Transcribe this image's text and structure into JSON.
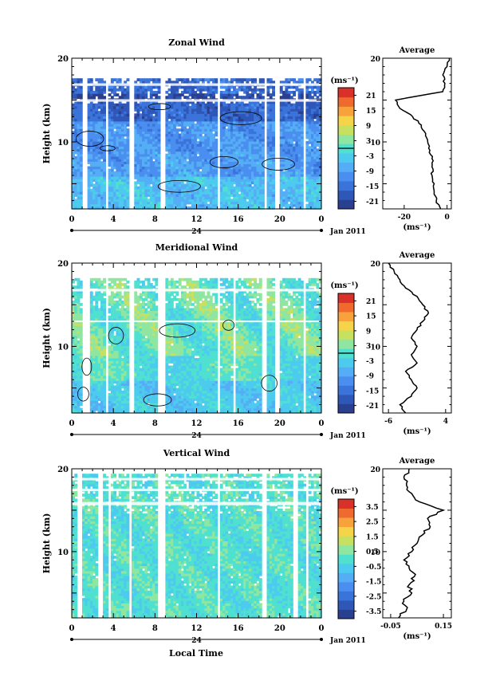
{
  "xaxis": {
    "ticks": [
      "0",
      "4",
      "8",
      "12",
      "16",
      "20",
      "0"
    ],
    "day": "24",
    "month": "Jan 2011",
    "label": "Local Time"
  },
  "colorbar_colors": [
    "#2b3f8f",
    "#2f57b8",
    "#3a73d9",
    "#4a8ff0",
    "#55aef5",
    "#4dcbee",
    "#4fe0d0",
    "#8fe6a0",
    "#c8e060",
    "#f5d44a",
    "#f8a23c",
    "#f06a30",
    "#d9302a"
  ],
  "chart_data": [
    {
      "type": "heatmap",
      "title": "Zonal Wind",
      "ylabel": "Height (km)",
      "unit": "(ms⁻¹)",
      "ylim": [
        2,
        20
      ],
      "xlim": [
        0,
        24
      ],
      "yticks": [
        "10",
        "20"
      ],
      "colorbar_ticks": [
        "21",
        "15",
        "9",
        "3",
        "-3",
        "-9",
        "-15",
        "-21"
      ],
      "colorbar_values": [
        21,
        15,
        9,
        3,
        -3,
        -9,
        -15,
        -21
      ],
      "colorbar_range": [
        -24,
        24
      ],
      "profile": {
        "title": "Average",
        "xlabel": "(ms⁻¹)",
        "xticks": [
          "-20",
          "0"
        ],
        "xtick_values": [
          -20,
          0
        ],
        "xlim": [
          -30,
          2
        ],
        "yticks": [
          "10",
          "20"
        ],
        "heights": [
          2,
          3,
          4,
          5,
          6,
          7,
          8,
          9,
          10,
          11,
          12,
          13,
          14,
          15,
          16,
          17,
          18,
          19,
          20
        ],
        "values": [
          -3,
          -5,
          -6,
          -6,
          -7,
          -7,
          -7,
          -8,
          -9,
          -10,
          -12,
          -16,
          -22,
          -24,
          -2,
          -1,
          -2,
          0,
          1
        ]
      }
    },
    {
      "type": "heatmap",
      "title": "Meridional Wind",
      "ylabel": "Height (km)",
      "unit": "(ms⁻¹)",
      "ylim": [
        2,
        20
      ],
      "xlim": [
        0,
        24
      ],
      "yticks": [
        "10",
        "20"
      ],
      "colorbar_ticks": [
        "21",
        "15",
        "9",
        "3",
        "-3",
        "-9",
        "-15",
        "-21"
      ],
      "colorbar_values": [
        21,
        15,
        9,
        3,
        -3,
        -9,
        -15,
        -21
      ],
      "colorbar_range": [
        -24,
        24
      ],
      "profile": {
        "title": "Average",
        "xlabel": "(ms⁻¹)",
        "xticks": [
          "-6",
          "4"
        ],
        "xtick_values": [
          -6,
          4
        ],
        "xlim": [
          -7,
          5
        ],
        "yticks": [
          "10",
          "20"
        ],
        "heights": [
          2,
          3,
          4,
          5,
          6,
          7,
          8,
          9,
          10,
          11,
          12,
          13,
          14,
          15,
          16,
          17,
          18,
          19,
          20
        ],
        "values": [
          -3,
          -4,
          -2,
          -1,
          -2,
          -3,
          -1,
          -2,
          -1,
          -2,
          -1,
          0,
          1,
          0,
          -1,
          -3,
          -4,
          -5,
          -6
        ]
      }
    },
    {
      "type": "heatmap",
      "title": "Vertical Wind",
      "ylabel": "Height (km)",
      "unit": "(ms⁻¹)",
      "ylim": [
        2,
        20
      ],
      "xlim": [
        0,
        24
      ],
      "yticks": [
        "10",
        "20"
      ],
      "colorbar_ticks": [
        "3.5",
        "2.5",
        "1.5",
        "0.5",
        "-0.5",
        "-1.5",
        "-2.5",
        "-3.5"
      ],
      "colorbar_values": [
        3.5,
        2.5,
        1.5,
        0.5,
        -0.5,
        -1.5,
        -2.5,
        -3.5
      ],
      "colorbar_range": [
        -4,
        4
      ],
      "profile": {
        "title": "Average",
        "xlabel": "(ms⁻¹)",
        "xticks": [
          "-0.05",
          "0.15"
        ],
        "xtick_values": [
          -0.05,
          0.15
        ],
        "xlim": [
          -0.08,
          0.18
        ],
        "yticks": [
          "10",
          "20"
        ],
        "heights": [
          2,
          3,
          4,
          5,
          6,
          7,
          8,
          9,
          10,
          11,
          12,
          13,
          14,
          15,
          16,
          17,
          18,
          19,
          20
        ],
        "values": [
          -0.02,
          0.01,
          0.0,
          0.03,
          0.02,
          0.04,
          0.02,
          0.0,
          0.03,
          0.05,
          0.07,
          0.1,
          0.09,
          0.15,
          0.06,
          0.03,
          0.01,
          0.0,
          0.02
        ]
      }
    }
  ]
}
